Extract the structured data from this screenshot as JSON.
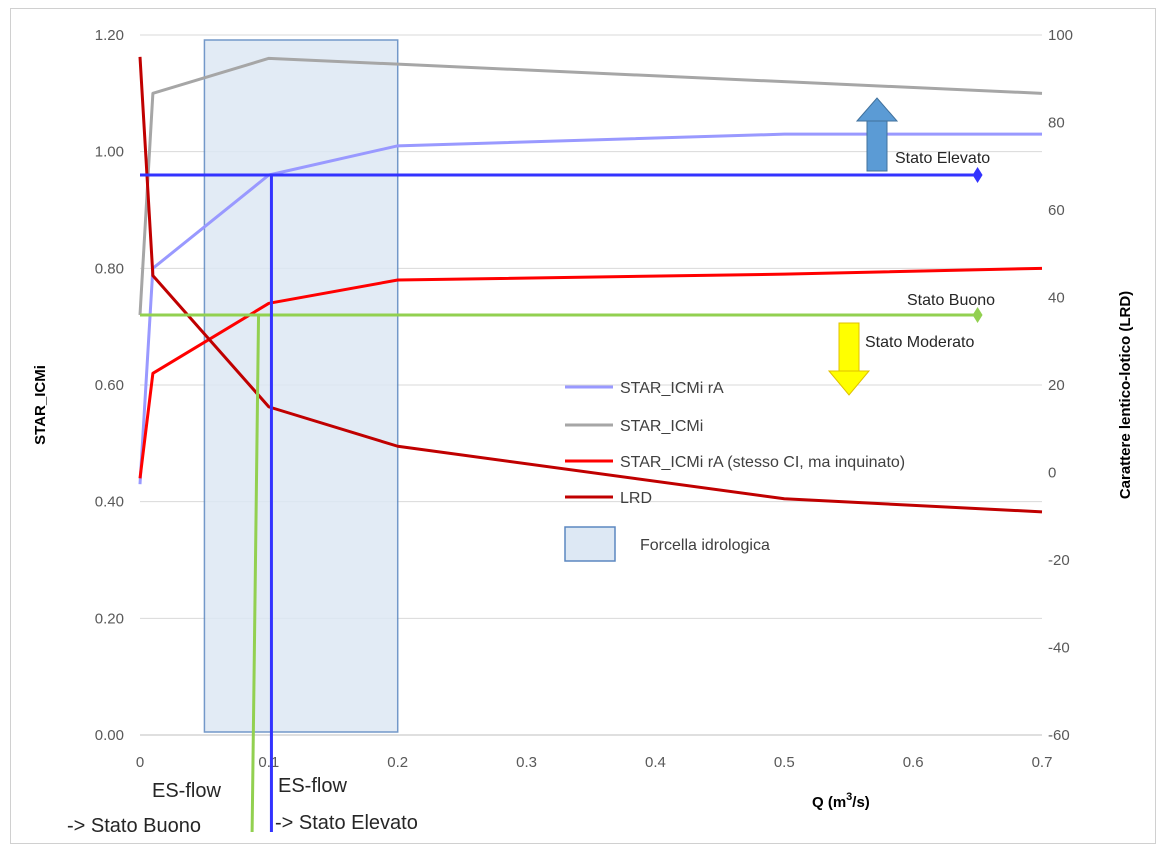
{
  "chart_data": {
    "type": "line",
    "xlabel_main": "Q (m",
    "xlabel_sup": "3",
    "xlabel_tail": "/s)",
    "ylabel": "STAR_ICMi",
    "y2label": "Carattere lentico-lotico  (LRD)",
    "xlim": [
      0,
      0.7
    ],
    "ylim": [
      0,
      1.2
    ],
    "y2lim": [
      -60,
      100
    ],
    "x_ticks": [
      "0",
      "0.1",
      "0.2",
      "0.3",
      "0.4",
      "0.5",
      "0.6",
      "0.7"
    ],
    "y_ticks": [
      "0.00",
      "0.20",
      "0.40",
      "0.60",
      "0.80",
      "1.00",
      "1.20"
    ],
    "y2_ticks": [
      "-60",
      "-40",
      "-20",
      "0",
      "20",
      "40",
      "60",
      "80",
      "100"
    ],
    "grid": "horizontal",
    "series": [
      {
        "name": "STAR_ICMi rA",
        "axis": "left",
        "color": "#9999ff",
        "x": [
          0,
          0.01,
          0.1,
          0.2,
          0.5,
          0.7
        ],
        "y": [
          0.43,
          0.8,
          0.96,
          1.01,
          1.03,
          1.03
        ]
      },
      {
        "name": "STAR_ICMi",
        "axis": "left",
        "color": "#a6a6a6",
        "x": [
          0,
          0.01,
          0.1,
          0.2,
          0.5,
          0.7
        ],
        "y": [
          0.72,
          1.1,
          1.16,
          1.15,
          1.12,
          1.1
        ]
      },
      {
        "name": "STAR_ICMi rA (stesso CI, ma inquinato)",
        "axis": "left",
        "color": "#ff0000",
        "x": [
          0,
          0.01,
          0.1,
          0.2,
          0.5,
          0.7
        ],
        "y": [
          0.44,
          0.62,
          0.74,
          0.78,
          0.79,
          0.8
        ]
      },
      {
        "name": "LRD",
        "axis": "right",
        "color": "#c00000",
        "x": [
          0,
          0.01,
          0.1,
          0.2,
          0.5,
          0.7
        ],
        "y": [
          95,
          45,
          15,
          6,
          -6,
          -9
        ]
      }
    ],
    "thresholds": [
      {
        "name": "Stato Elevato",
        "y": 0.96,
        "x_end": 0.65,
        "color": "#3333ff"
      },
      {
        "name": "Stato Buono",
        "y": 0.72,
        "x_end": 0.65,
        "color": "#92d050"
      }
    ],
    "es_flow": [
      {
        "label1": "ES-flow",
        "label2": "-> Stato Buono",
        "x": 0.087,
        "color": "#92d050"
      },
      {
        "label1": "ES-flow",
        "label2": "-> Stato Elevato",
        "x": 0.102,
        "color": "#3333ff"
      }
    ],
    "forcella": {
      "name": "Forcella idrologica",
      "x0": 0.05,
      "x1": 0.2
    },
    "annotations": {
      "elevato": "Stato Elevato",
      "buono": "Stato Buono",
      "moderato": "Stato Moderato"
    }
  }
}
